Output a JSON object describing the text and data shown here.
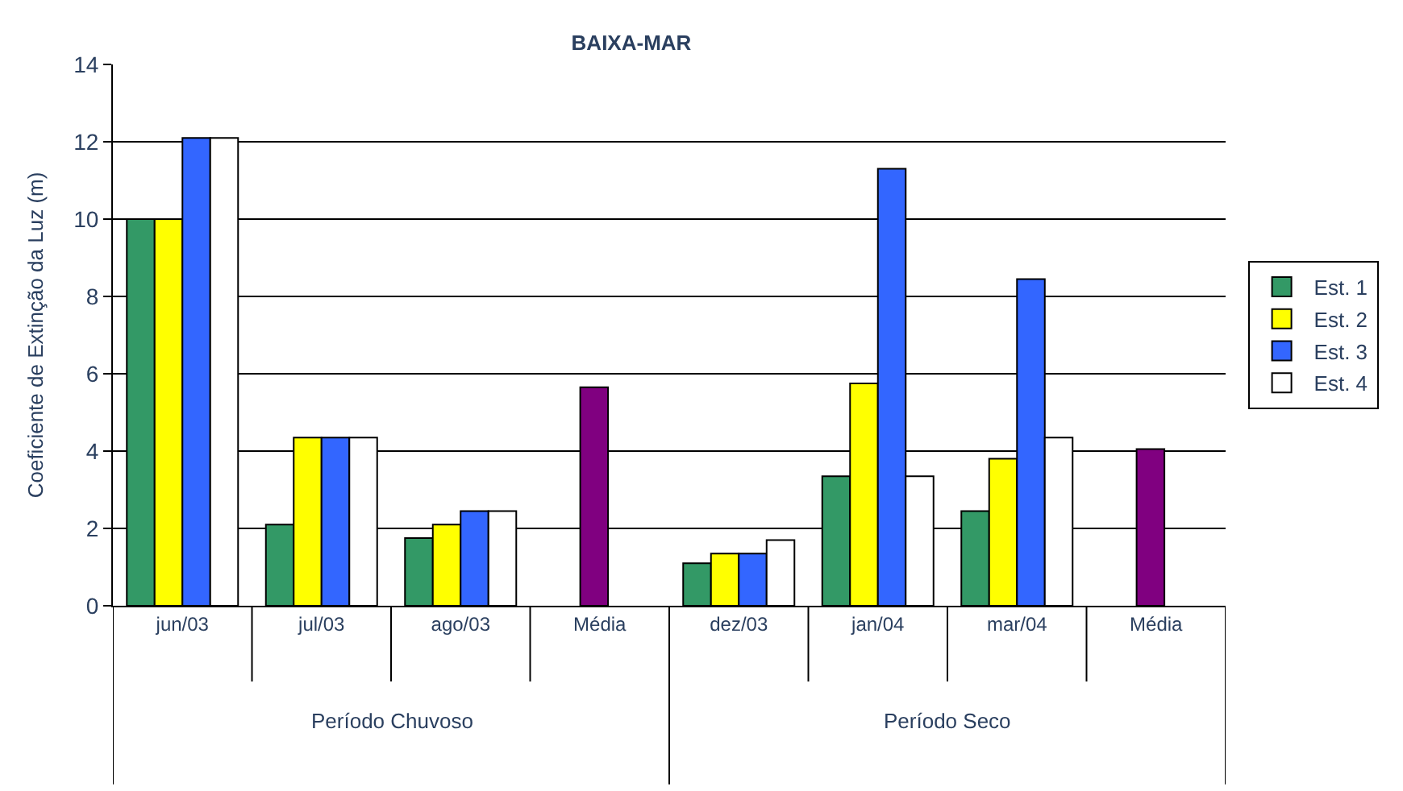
{
  "chart_data": {
    "type": "bar",
    "title": "BAIXA-MAR",
    "ylabel": "Coeficiente de Extinção da Luz (m)",
    "categories": [
      "jun/03",
      "jul/03",
      "ago/03",
      "Média",
      "dez/03",
      "jan/04",
      "mar/04",
      "Média"
    ],
    "series": [
      {
        "name": "Est. 1",
        "color": "#339966",
        "values": [
          10,
          2.1,
          1.75,
          null,
          1.1,
          3.35,
          2.45,
          null
        ]
      },
      {
        "name": "Est. 2",
        "color": "#ffff00",
        "values": [
          10,
          4.35,
          2.1,
          null,
          1.35,
          5.75,
          3.8,
          null
        ]
      },
      {
        "name": "Est. 3",
        "color": "#3366ff",
        "values": [
          12.1,
          4.35,
          2.45,
          null,
          1.35,
          11.3,
          8.45,
          null
        ]
      },
      {
        "name": "Est. 4",
        "color": "#ffffff",
        "values": [
          12.1,
          4.35,
          2.45,
          null,
          1.7,
          3.35,
          4.35,
          null
        ]
      },
      {
        "color": "#800080",
        "values": [
          null,
          null,
          null,
          5.65,
          null,
          null,
          null,
          4.05
        ]
      }
    ],
    "annotations": [
      "Período Chuvoso",
      "Período Seco"
    ],
    "ylim": [
      0,
      14
    ],
    "yticks": [
      0,
      2,
      4,
      6,
      8,
      10,
      12,
      14
    ],
    "grid": "y",
    "legend": "right"
  }
}
